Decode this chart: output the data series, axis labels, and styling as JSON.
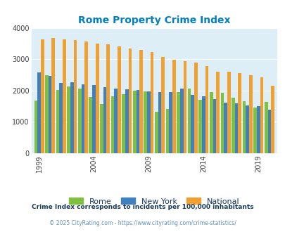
{
  "title": "Rome Property Crime Index",
  "title_color": "#0080c0",
  "years": [
    1999,
    2000,
    2001,
    2002,
    2003,
    2004,
    2005,
    2006,
    2007,
    2008,
    2009,
    2010,
    2011,
    2012,
    2013,
    2014,
    2015,
    2016,
    2017,
    2018,
    2019,
    2020
  ],
  "rome": [
    1670,
    2490,
    2020,
    2130,
    2050,
    1800,
    1560,
    1820,
    1870,
    1990,
    1980,
    1330,
    1400,
    1950,
    2060,
    1710,
    1940,
    1930,
    1760,
    1660,
    1460,
    1630
  ],
  "new_york": [
    2570,
    2460,
    2230,
    2260,
    2200,
    2170,
    2100,
    2050,
    2030,
    2010,
    1980,
    1950,
    1940,
    2060,
    1850,
    1820,
    1730,
    1620,
    1600,
    1530,
    1500,
    1380
  ],
  "national": [
    3640,
    3670,
    3640,
    3620,
    3560,
    3490,
    3470,
    3410,
    3340,
    3290,
    3230,
    3060,
    2990,
    2940,
    2890,
    2770,
    2600,
    2590,
    2560,
    2480,
    2410,
    2160
  ],
  "rome_color": "#80c040",
  "newyork_color": "#4080c0",
  "national_color": "#f0a030",
  "bg_color": "#ddeef6",
  "ylim": [
    0,
    4000
  ],
  "yticks": [
    0,
    1000,
    2000,
    3000,
    4000
  ],
  "xtick_years": [
    1999,
    2004,
    2009,
    2014,
    2019
  ],
  "legend_labels": [
    "Rome",
    "New York",
    "National"
  ],
  "subtitle": "Crime Index corresponds to incidents per 100,000 inhabitants",
  "footer": "© 2025 CityRating.com - https://www.cityrating.com/crime-statistics/",
  "subtitle_color": "#1a3a5c",
  "footer_color": "#6090b0"
}
